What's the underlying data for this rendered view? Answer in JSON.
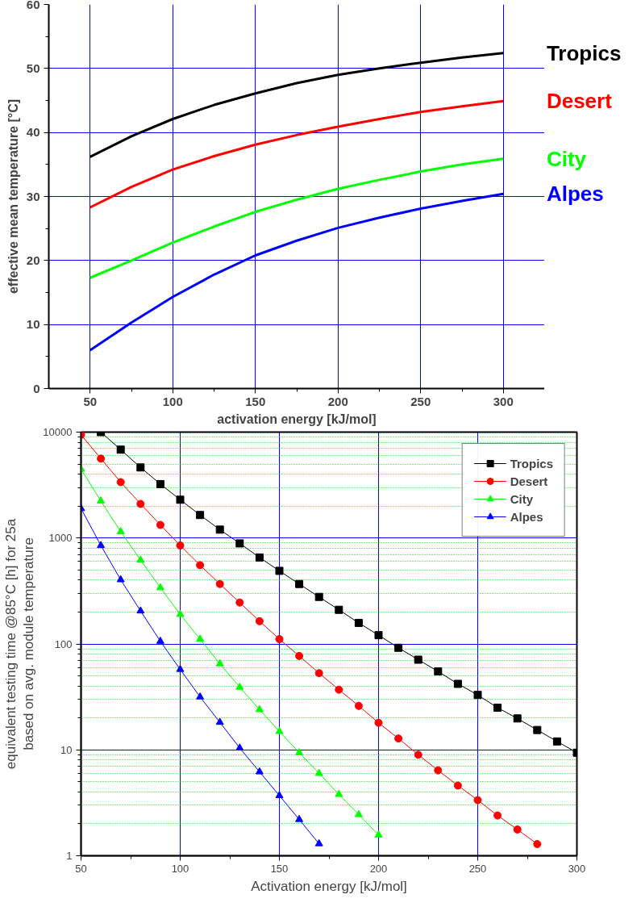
{
  "chart_data": [
    {
      "type": "line",
      "xlabel": "activation energy [kJ/mol]",
      "ylabel": "effective mean temperature [°C]",
      "xlim": [
        25,
        325
      ],
      "ylim": [
        0,
        60
      ],
      "xticks": [
        50,
        100,
        150,
        200,
        250,
        300
      ],
      "yticks": [
        0,
        10,
        20,
        30,
        40,
        50,
        60
      ],
      "grid": true,
      "legend": false,
      "marker": "none",
      "line_style": "solid",
      "x": [
        50,
        75,
        100,
        125,
        150,
        175,
        200,
        225,
        250,
        275,
        300
      ],
      "series": [
        {
          "name": "Tropics",
          "color": "#000000",
          "values": [
            36.2,
            39.4,
            42.1,
            44.3,
            46.1,
            47.7,
            49.0,
            50.0,
            50.9,
            51.7,
            52.4
          ]
        },
        {
          "name": "Desert",
          "color": "#ff0000",
          "values": [
            28.3,
            31.5,
            34.2,
            36.3,
            38.1,
            39.6,
            40.9,
            42.1,
            43.2,
            44.1,
            44.9
          ]
        },
        {
          "name": "City",
          "color": "#00ff00",
          "values": [
            17.3,
            20.0,
            22.8,
            25.3,
            27.6,
            29.5,
            31.2,
            32.6,
            33.9,
            35.0,
            35.9
          ]
        },
        {
          "name": "Alpes",
          "color": "#0000ff",
          "values": [
            6.0,
            10.3,
            14.3,
            17.8,
            20.8,
            23.1,
            25.1,
            26.7,
            28.1,
            29.3,
            30.4
          ]
        }
      ]
    },
    {
      "type": "line",
      "xlabel": "Activation energy [kJ/mol]",
      "ylabel": "equivalent testing time @85°C [h] for 25a\nbased on avg. module temperature",
      "xlim": [
        50,
        300
      ],
      "ylim": [
        1,
        10000
      ],
      "xticks": [
        50,
        100,
        150,
        200,
        250,
        300
      ],
      "yticks": [
        1,
        {
          "value": 2,
          "label": null
        },
        {
          "value": 3,
          "label": null
        },
        {
          "value": 4,
          "label": null
        },
        {
          "value": 5,
          "label": null
        },
        {
          "value": 6,
          "label": null
        },
        {
          "value": 7,
          "label": null
        },
        {
          "value": 8,
          "label": null
        },
        {
          "value": 9,
          "label": null
        },
        10,
        {
          "value": 20,
          "label": null
        },
        {
          "value": 30,
          "label": null
        },
        {
          "value": 40,
          "label": null
        },
        {
          "value": 50,
          "label": null
        },
        {
          "value": 60,
          "label": null
        },
        {
          "value": 70,
          "label": null
        },
        {
          "value": 80,
          "label": null
        },
        {
          "value": 90,
          "label": null
        },
        100,
        {
          "value": 200,
          "label": null
        },
        {
          "value": 300,
          "label": null
        },
        {
          "value": 400,
          "label": null
        },
        {
          "value": 500,
          "label": null
        },
        {
          "value": 600,
          "label": null
        },
        {
          "value": 700,
          "label": null
        },
        {
          "value": 800,
          "label": null
        },
        {
          "value": 900,
          "label": null
        },
        1000,
        {
          "value": 2000,
          "label": null
        },
        {
          "value": 3000,
          "label": null
        },
        {
          "value": 4000,
          "label": null
        },
        {
          "value": 5000,
          "label": null
        },
        {
          "value": 6000,
          "label": null
        },
        {
          "value": 7000,
          "label": null
        },
        {
          "value": 8000,
          "label": null
        },
        {
          "value": 9000,
          "label": null
        },
        10000
      ],
      "log": "y",
      "grid": true,
      "legend": "top right",
      "line_style": "solid",
      "series": [
        {
          "name": "Tropics",
          "color": "#000000",
          "marker": "square",
          "x": [
            60,
            70,
            80,
            90,
            100,
            110,
            120,
            130,
            140,
            150,
            160,
            170,
            180,
            190,
            200,
            210,
            220,
            230,
            240,
            250,
            260,
            270,
            280,
            290,
            300
          ],
          "values": [
            10000,
            6830,
            4640,
            3230,
            2300,
            1650,
            1200,
            890,
            655,
            490,
            368,
            278,
            210,
            158,
            121,
            92,
            71,
            55,
            42,
            33,
            25,
            19.8,
            15.4,
            12,
            9.4
          ]
        },
        {
          "name": "Desert",
          "color": "#ff0000",
          "marker": "circle",
          "x": [
            50,
            60,
            70,
            80,
            90,
            100,
            110,
            120,
            130,
            140,
            150,
            160,
            170,
            180,
            190,
            200,
            210,
            220,
            230,
            240,
            250,
            260,
            270,
            280
          ],
          "values": [
            9440,
            5620,
            3370,
            2100,
            1330,
            850,
            554,
            368,
            246,
            164,
            111,
            77,
            53,
            37,
            26,
            18,
            12.8,
            9.0,
            6.4,
            4.6,
            3.35,
            2.4,
            1.77,
            1.29
          ]
        },
        {
          "name": "City",
          "color": "#00ff00",
          "marker": "triangle",
          "x": [
            50,
            60,
            70,
            80,
            90,
            100,
            110,
            120,
            130,
            140,
            150,
            160,
            170,
            180,
            190,
            200
          ],
          "values": [
            4470,
            2240,
            1150,
            620,
            340,
            190,
            111,
            65,
            39,
            24,
            14.9,
            9.4,
            6.0,
            3.8,
            2.45,
            1.57
          ]
        },
        {
          "name": "Alpes",
          "color": "#0000ff",
          "marker": "triangle",
          "x": [
            50,
            60,
            70,
            80,
            90,
            100,
            110,
            120,
            130,
            140,
            150,
            160,
            170
          ],
          "values": [
            1900,
            850,
            404,
            205,
            106,
            57.5,
            31.6,
            18.2,
            10.4,
            6.2,
            3.7,
            2.2,
            1.3
          ]
        }
      ]
    }
  ]
}
